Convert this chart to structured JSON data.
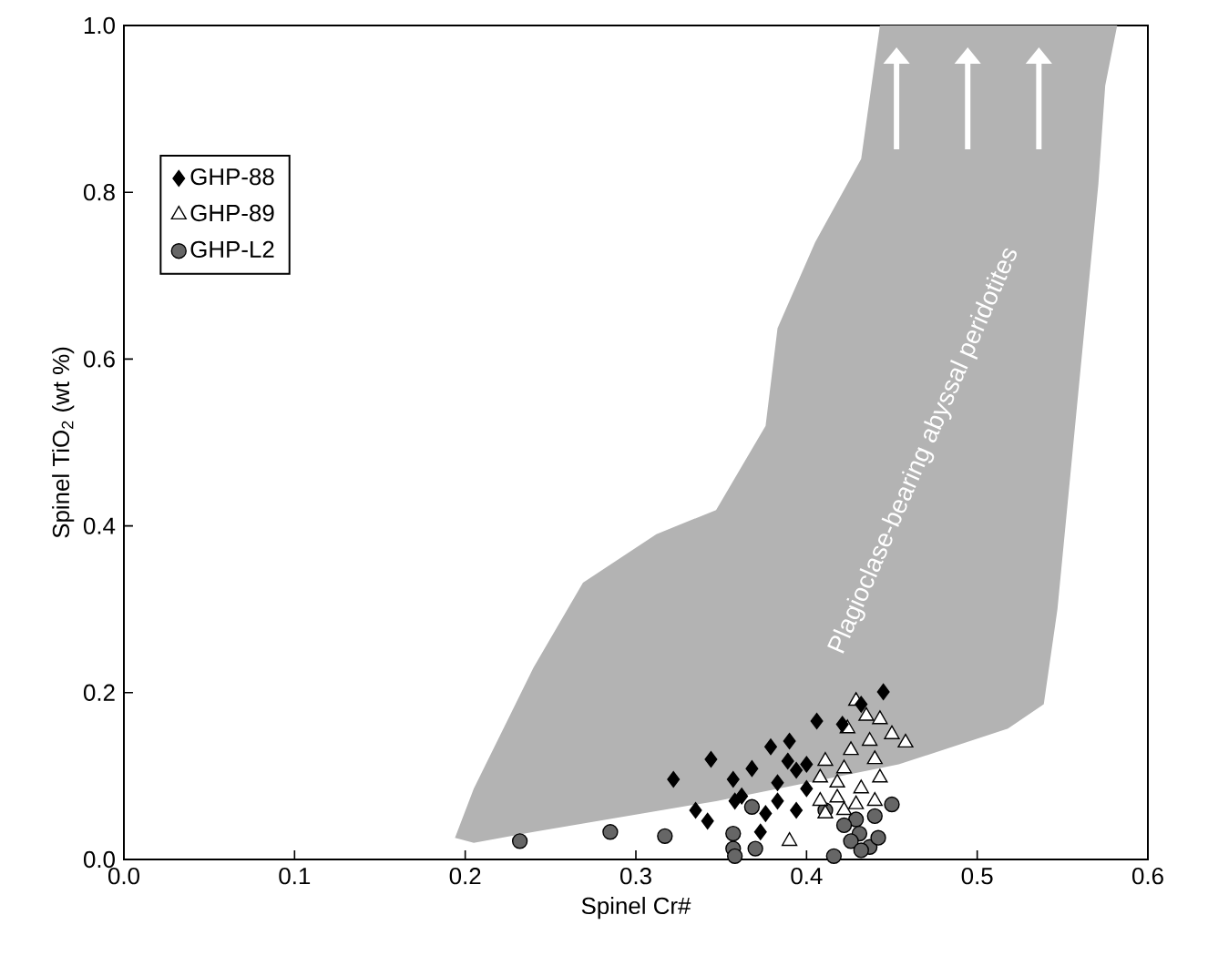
{
  "chart_data": {
    "type": "scatter",
    "xlabel": "Spinel Cr#",
    "ylabel": "Spinel TiO$_{2}$ (wt %)",
    "xlim": [
      0,
      0.6
    ],
    "ylim": [
      0,
      1.0
    ],
    "xticks": [
      {
        "value": 0,
        "label": "0.0"
      },
      {
        "value": 0.1,
        "label": "0.1"
      },
      {
        "value": 0.2,
        "label": "0.2"
      },
      {
        "value": 0.3,
        "label": "0.3"
      },
      {
        "value": 0.4,
        "label": "0.4"
      },
      {
        "value": 0.5,
        "label": "0.5"
      },
      {
        "value": 0.6,
        "label": "0.6"
      }
    ],
    "yticks": [
      {
        "value": 0,
        "label": "0.0"
      },
      {
        "value": 0.2,
        "label": "0.2"
      },
      {
        "value": 0.4,
        "label": "0.4"
      },
      {
        "value": 0.6,
        "label": "0.6"
      },
      {
        "value": 0.8,
        "label": "0.8"
      },
      {
        "value": 1.0,
        "label": "1.0"
      }
    ],
    "legend": "top left",
    "series": [
      {
        "name": "Plagioclase-bearing abyssal peridotites",
        "type": "area",
        "color": "#b3b3b3",
        "x": [
          0.194,
          0.205,
          0.24,
          0.269,
          0.312,
          0.347,
          0.376,
          0.383,
          0.405,
          0.432,
          0.443,
          0.582,
          0.575,
          0.571,
          0.547,
          0.539,
          0.518,
          0.454,
          0.347,
          0.24,
          0.205
        ],
        "values": [
          0.026,
          0.085,
          0.23,
          0.332,
          0.39,
          0.419,
          0.52,
          0.637,
          0.74,
          0.84,
          1.0,
          1.0,
          0.928,
          0.81,
          0.3,
          0.186,
          0.157,
          0.114,
          0.07,
          0.033,
          0.02
        ]
      },
      {
        "name": "GHP-88",
        "marker": "diamond",
        "color": "#000000",
        "x": [
          0.322,
          0.344,
          0.335,
          0.342,
          0.357,
          0.358,
          0.368,
          0.379,
          0.39,
          0.389,
          0.376,
          0.373,
          0.383,
          0.394,
          0.394,
          0.4,
          0.406,
          0.421,
          0.445,
          0.383,
          0.362,
          0.4,
          0.432
        ],
        "values": [
          0.096,
          0.12,
          0.059,
          0.046,
          0.096,
          0.07,
          0.109,
          0.135,
          0.142,
          0.118,
          0.055,
          0.033,
          0.092,
          0.107,
          0.059,
          0.114,
          0.166,
          0.162,
          0.201,
          0.07,
          0.076,
          0.085,
          0.186
        ]
      },
      {
        "name": "GHP-89",
        "marker": "triangle",
        "color": "#ffffff",
        "x": [
          0.429,
          0.435,
          0.443,
          0.424,
          0.45,
          0.458,
          0.437,
          0.426,
          0.411,
          0.422,
          0.44,
          0.408,
          0.418,
          0.432,
          0.443,
          0.408,
          0.418,
          0.429,
          0.44,
          0.411,
          0.422,
          0.39
        ],
        "values": [
          0.19,
          0.172,
          0.168,
          0.157,
          0.15,
          0.14,
          0.142,
          0.131,
          0.118,
          0.109,
          0.12,
          0.098,
          0.092,
          0.085,
          0.098,
          0.07,
          0.074,
          0.066,
          0.07,
          0.055,
          0.059,
          0.022
        ]
      },
      {
        "name": "GHP-L2",
        "marker": "circle",
        "color": "#666666",
        "x": [
          0.232,
          0.285,
          0.317,
          0.357,
          0.357,
          0.37,
          0.368,
          0.416,
          0.411,
          0.429,
          0.44,
          0.45,
          0.431,
          0.437,
          0.426,
          0.442,
          0.422,
          0.432,
          0.358
        ],
        "values": [
          0.022,
          0.033,
          0.028,
          0.031,
          0.013,
          0.013,
          0.063,
          0.004,
          0.059,
          0.048,
          0.052,
          0.066,
          0.031,
          0.015,
          0.022,
          0.026,
          0.041,
          0.011,
          0.004
        ]
      }
    ]
  }
}
